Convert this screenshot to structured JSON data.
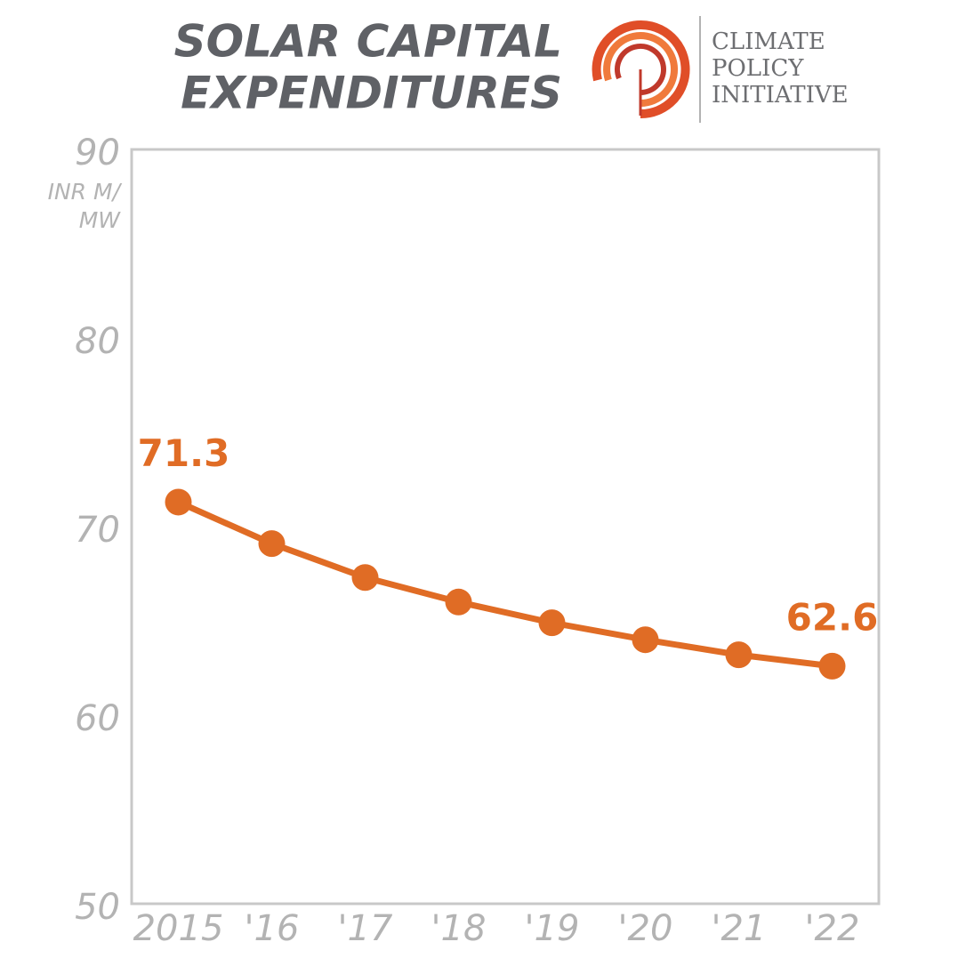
{
  "chart_data": {
    "type": "line",
    "title": [
      "SOLAR CAPITAL",
      "EXPENDITURES"
    ],
    "logo": [
      "CLIMATE",
      "POLICY",
      "INITIATIVE"
    ],
    "y_unit": [
      "INR M/",
      "MW"
    ],
    "categories": [
      "2015",
      "'16",
      "'17",
      "'18",
      "'19",
      "'20",
      "'21",
      "'22"
    ],
    "series": [
      {
        "name": "Solar capital expenditures",
        "color": "#e06c25",
        "values": [
          71.3,
          69.1,
          67.3,
          66.0,
          64.9,
          64.0,
          63.2,
          62.6
        ]
      }
    ],
    "data_labels": "ends",
    "ylim": [
      50,
      90
    ],
    "yticks": [
      50,
      60,
      70,
      80,
      90
    ],
    "grid": false
  }
}
